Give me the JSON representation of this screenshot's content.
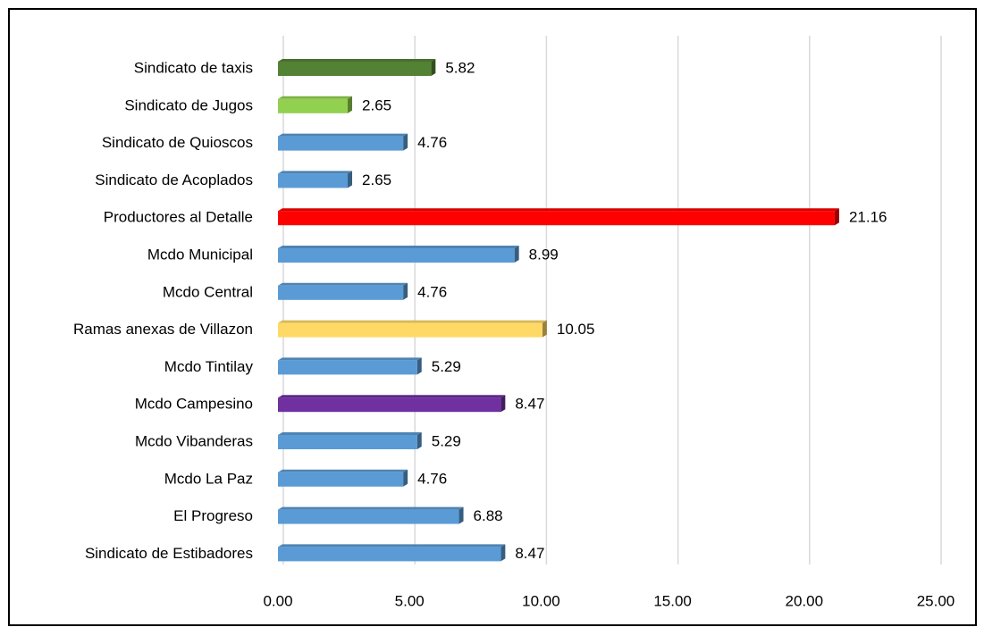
{
  "chart_data": {
    "type": "bar",
    "orientation": "horizontal",
    "categories": [
      "Sindicato de taxis",
      "Sindicato de Jugos",
      "Sindicato de Quioscos",
      "Sindicato de Acoplados",
      "Productores al Detalle",
      "Mcdo Municipal",
      "Mcdo Central",
      "Ramas anexas de Villazon",
      "Mcdo Tintilay",
      "Mcdo Campesino",
      "Mcdo Vibanderas",
      "Mcdo La Paz",
      "El Progreso",
      "Sindicato de Estibadores"
    ],
    "values": [
      5.82,
      2.65,
      4.76,
      2.65,
      21.16,
      8.99,
      4.76,
      10.05,
      5.29,
      8.47,
      5.29,
      4.76,
      6.88,
      8.47
    ],
    "colors": [
      "#548235",
      "#92d050",
      "#5b9bd5",
      "#5b9bd5",
      "#ff0000",
      "#5b9bd5",
      "#5b9bd5",
      "#ffd966",
      "#5b9bd5",
      "#7030a0",
      "#5b9bd5",
      "#5b9bd5",
      "#5b9bd5",
      "#5b9bd5"
    ],
    "xlim": [
      0,
      25
    ],
    "xticks": [
      {
        "value": 0,
        "label": "0.00"
      },
      {
        "value": 5,
        "label": "5.00"
      },
      {
        "value": 10,
        "label": "10.00"
      },
      {
        "value": 15,
        "label": "15.00"
      },
      {
        "value": 20,
        "label": "20.00"
      },
      {
        "value": 25,
        "label": "25.00"
      }
    ],
    "grid": true
  }
}
